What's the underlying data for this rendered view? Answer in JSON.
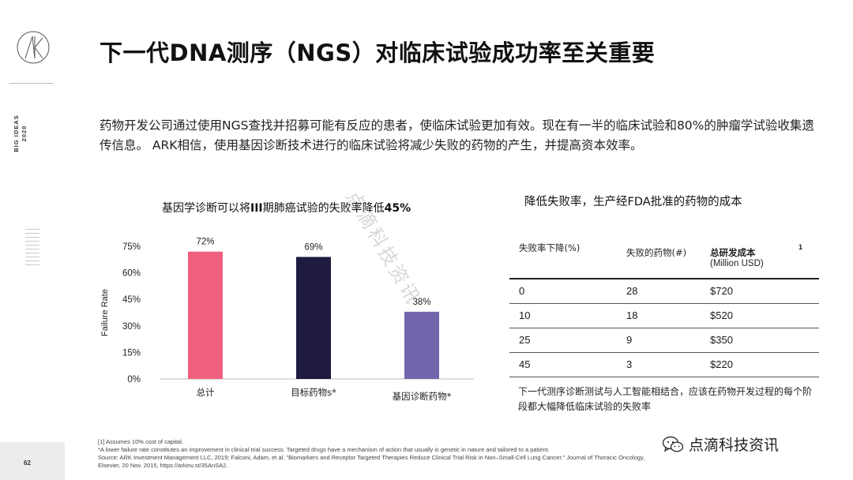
{
  "rail": {
    "big_ideas_line1": "BIG IDEAS",
    "big_ideas_line2": "2020",
    "page_number": "62"
  },
  "title": "下一代DNA测序（NGS）对临床试验成功率至关重要",
  "intro": "药物开发公司通过使用NGS查找并招募可能有反应的患者，使临床试验更加有效。现在有一半的临床试验和80%的肿瘤学试验收集遗传信息。 ARK相信，使用基因诊断技术进行的临床试验将减少失败的药物的产生，并提高资本效率。",
  "watermark": "点滴科技资讯",
  "chart": {
    "title_main": "基因学诊断可以将",
    "title_bold": "III",
    "title_rest": "期肺癌试验的失败率降低",
    "title_pct": "45%"
  },
  "chart_data": {
    "type": "bar",
    "categories": [
      "总计",
      "目标药物s*",
      "基因诊断药物*"
    ],
    "values": [
      72,
      69,
      38
    ],
    "data_labels": [
      "72%",
      "69%",
      "38%"
    ],
    "colors": [
      "#f0607e",
      "#1e1b3f",
      "#7466ad"
    ],
    "ylabel": "Failure Rate",
    "ylim": [
      0,
      75
    ],
    "yticks": [
      0,
      15,
      30,
      45,
      60,
      75
    ],
    "ytick_labels": [
      "0%",
      "15%",
      "30%",
      "45%",
      "60%",
      "75%"
    ],
    "grid": false
  },
  "table": {
    "title": "降低失败率，生产经FDA批准的药物的成本",
    "headers": {
      "col1": "失败率下降(%)",
      "col2": "失败的药物(#)",
      "col3_line1": "总研发成本",
      "col3_line2": "(Million USD)",
      "footnote_mark": "1"
    },
    "rows": [
      [
        "0",
        "28",
        "$720"
      ],
      [
        "10",
        "18",
        "$520"
      ],
      [
        "25",
        "9",
        "$350"
      ],
      [
        "45",
        "3",
        "$220"
      ]
    ],
    "note": "下一代测序诊断测试与人工智能相结合，应该在药物开发过程的每个阶段都大幅降低临床试验的失败率"
  },
  "footnotes": [
    "[1] Assumes 10% cost of capital.",
    "*A lower failure rate constitutes an improvement in clinical trial success. Targeted drugs have a mechanism of action that usually is genetic in nature and tailored to a patient.",
    "Source: ARK Investment Management LLC, 2019; Falconi, Adam, et al. \"Biomarkers and Receptor Targeted Therapies Reduce Clinical Trial Risk in Non–Small-Cell Lung Cancer.\" Journal of Thoracic Oncology,",
    "Elsevier, 20 Nov. 2015, https://arkinv.st/35AnSA2."
  ],
  "brand": {
    "name": "点滴科技资讯",
    "icon": "wechat-icon"
  }
}
